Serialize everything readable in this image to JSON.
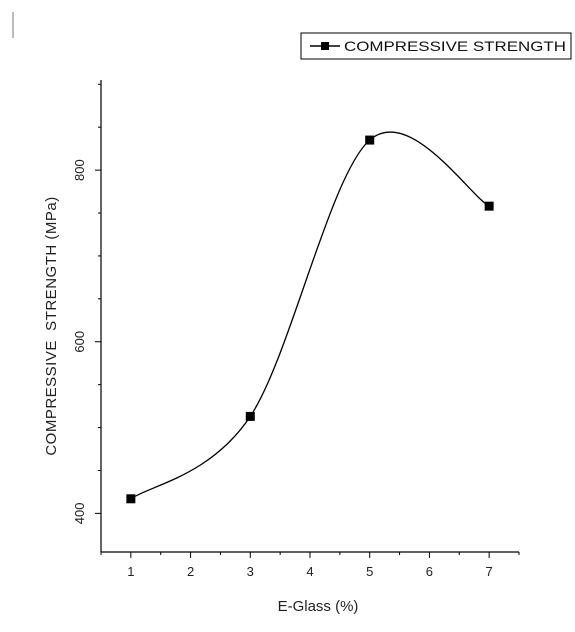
{
  "chart_data": {
    "type": "line",
    "title": "",
    "xlabel": "E-Glass (%)",
    "ylabel": "COMPRESSIVE  STRENGTH (MPa)",
    "xlim": [
      0.5,
      7.5
    ],
    "ylim": [
      355,
      905
    ],
    "x_ticks": [
      1,
      2,
      3,
      4,
      5,
      6,
      7
    ],
    "y_ticks": [
      400,
      600,
      800
    ],
    "grid": false,
    "legend_position": "top-right",
    "series": [
      {
        "name": "COMPRESSIVE STRENGTH",
        "x": [
          1,
          3,
          5,
          7
        ],
        "y": [
          417,
          513,
          835,
          758
        ],
        "marker": "square",
        "line": "smooth",
        "color": "#000000"
      }
    ]
  }
}
